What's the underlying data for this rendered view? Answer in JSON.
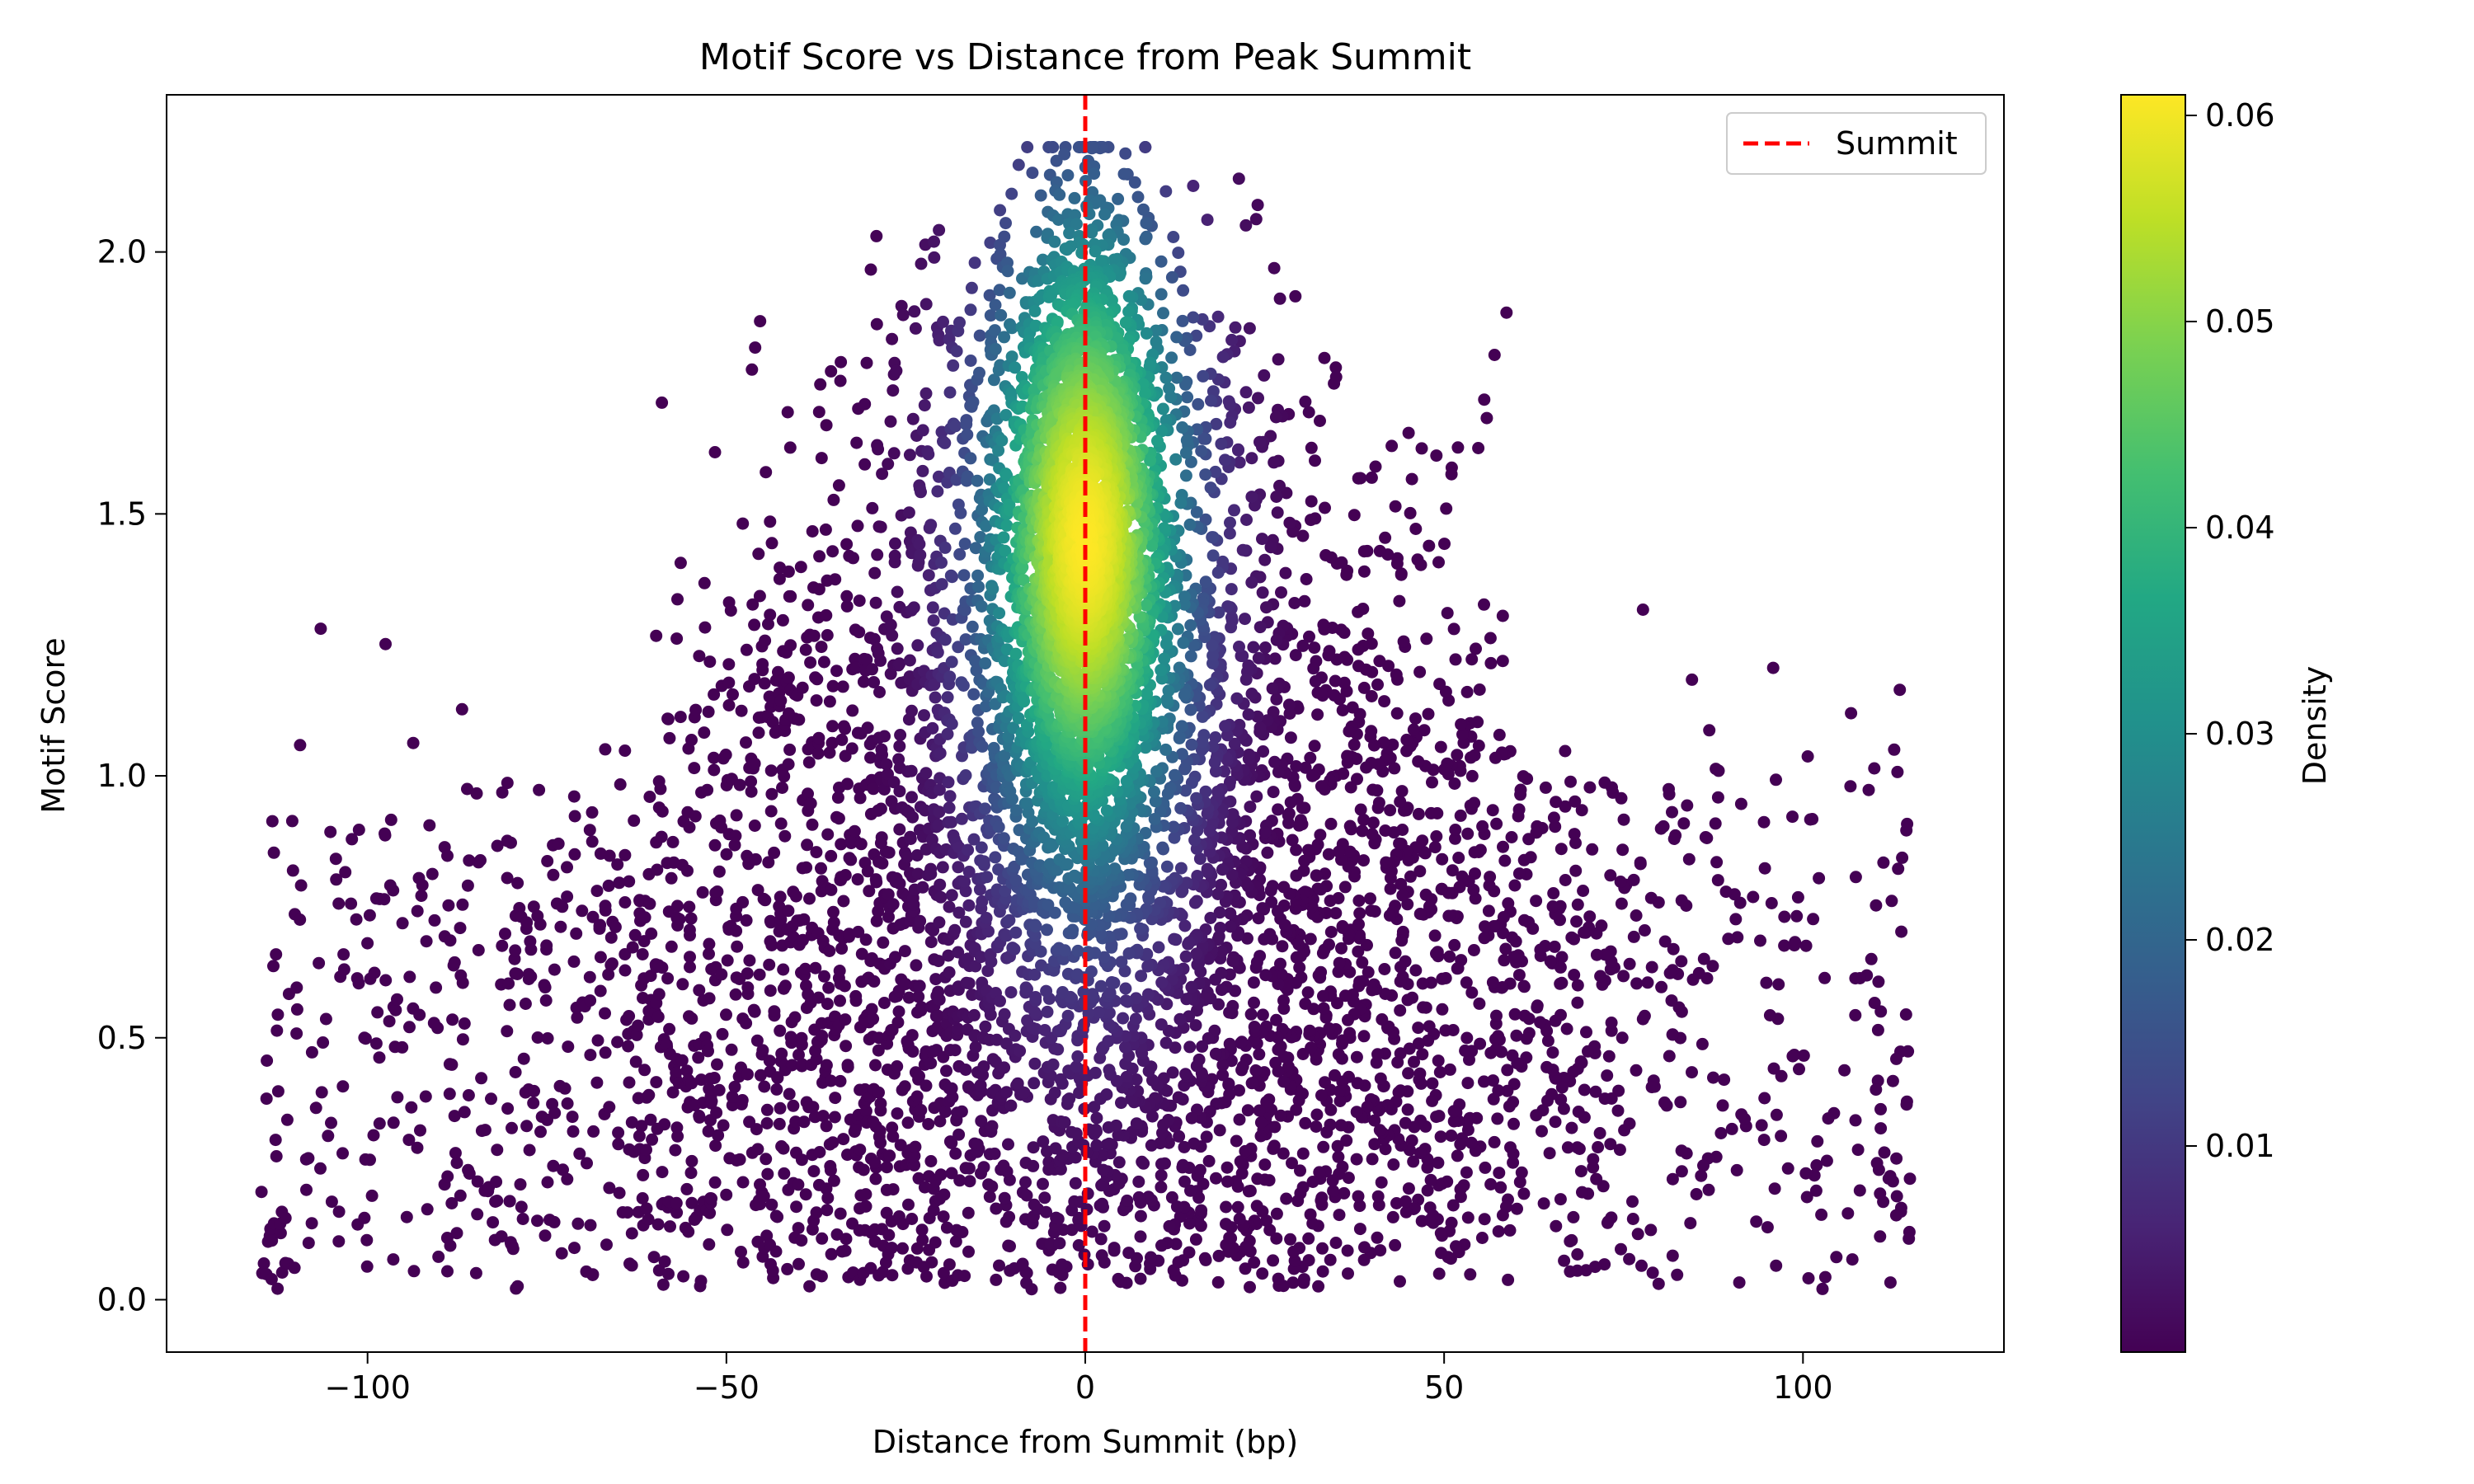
{
  "chart_data": {
    "type": "scatter",
    "title": "Motif Score vs Distance from Peak Summit",
    "xlabel": "Distance from Summit (bp)",
    "ylabel": "Motif Score",
    "xlim": [
      -128,
      128
    ],
    "ylim": [
      -0.1,
      2.3
    ],
    "xticks": [
      -100,
      -50,
      0,
      50,
      100
    ],
    "xtick_labels": [
      "−100",
      "−50",
      "0",
      "50",
      "100"
    ],
    "yticks": [
      0.0,
      0.5,
      1.0,
      1.5,
      2.0
    ],
    "ytick_labels": [
      "0.0",
      "0.5",
      "1.0",
      "1.5",
      "2.0"
    ],
    "grid": false,
    "legend": {
      "position": "upper-right",
      "entries": [
        {
          "label": "Summit",
          "color": "#ff0000",
          "style": "dashed"
        }
      ]
    },
    "reference_line": {
      "x": 0,
      "label": "Summit",
      "color": "#ff0000"
    },
    "points": {
      "x_range": [
        -115,
        115
      ],
      "y_range": [
        0.02,
        2.2
      ],
      "dense_core": {
        "x_center": 0,
        "y_center": 1.45
      },
      "color_by": "density",
      "colormap": "viridis"
    },
    "colorbar": {
      "label": "Density",
      "range": [
        0.0,
        0.061
      ],
      "ticks": [
        0.01,
        0.02,
        0.03,
        0.04,
        0.05,
        0.06
      ],
      "tick_labels": [
        "0.01",
        "0.02",
        "0.03",
        "0.04",
        "0.05",
        "0.06"
      ]
    }
  }
}
